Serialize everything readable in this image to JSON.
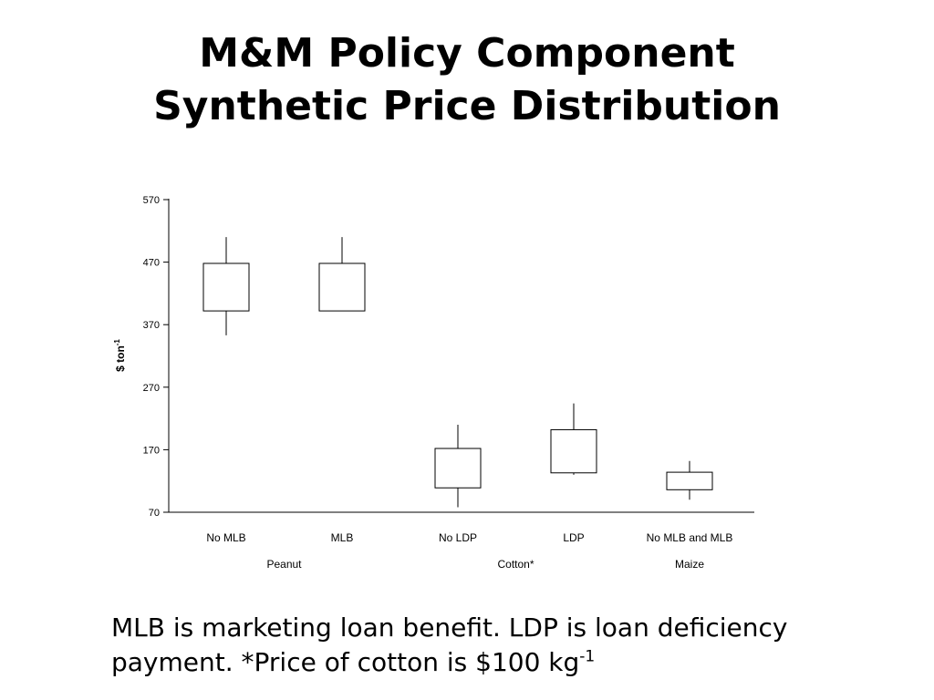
{
  "slide": {
    "title_line1": "M&M Policy Component",
    "title_line2": "Synthetic Price Distribution",
    "caption_text": "MLB is marketing loan benefit. LDP is loan deficiency payment. *Price of cotton is $100 kg",
    "caption_superscript": "-1"
  },
  "chart_data": {
    "type": "boxplot",
    "ylabel": "$ ton",
    "ylabel_superscript": "-1",
    "ylim": [
      70,
      570
    ],
    "yticks": [
      "570",
      "470",
      "370",
      "270",
      "170",
      "70"
    ],
    "categories": [
      "No MLB",
      "MLB",
      "No LDP",
      "LDP",
      "No MLB and MLB"
    ],
    "groups": [
      {
        "label": "Peanut",
        "categories": [
          "No MLB",
          "MLB"
        ]
      },
      {
        "label": "Cotton*",
        "categories": [
          "No LDP",
          "LDP"
        ]
      },
      {
        "label": "Maize",
        "categories": [
          "No MLB and MLB"
        ]
      }
    ],
    "boxes": [
      {
        "category": "No MLB",
        "whisker_low": 353,
        "q1": 392,
        "q3": 468,
        "whisker_high": 510
      },
      {
        "category": "MLB",
        "whisker_low": 392,
        "q1": 392,
        "q3": 468,
        "whisker_high": 510
      },
      {
        "category": "No LDP",
        "whisker_low": 78,
        "q1": 109,
        "q3": 172,
        "whisker_high": 210
      },
      {
        "category": "LDP",
        "whisker_low": 130,
        "q1": 133,
        "q3": 202,
        "whisker_high": 244
      },
      {
        "category": "No MLB and MLB",
        "whisker_low": 90,
        "q1": 106,
        "q3": 134,
        "whisker_high": 152
      }
    ]
  }
}
